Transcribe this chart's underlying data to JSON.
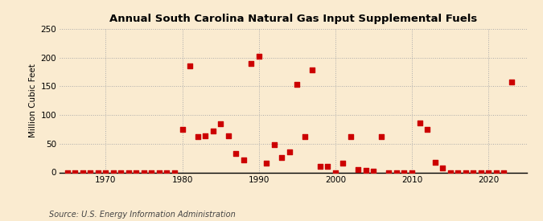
{
  "title": "Annual South Carolina Natural Gas Input Supplemental Fuels",
  "ylabel": "Million Cubic Feet",
  "source": "Source: U.S. Energy Information Administration",
  "background_color": "#faebd0",
  "plot_background_color": "#faebd0",
  "marker_color": "#cc0000",
  "marker_size": 16,
  "xlim": [
    1964,
    2025
  ],
  "ylim": [
    0,
    250
  ],
  "xticks": [
    1970,
    1980,
    1990,
    2000,
    2010,
    2020
  ],
  "yticks": [
    0,
    50,
    100,
    150,
    200,
    250
  ],
  "years": [
    1965,
    1966,
    1967,
    1968,
    1969,
    1970,
    1971,
    1972,
    1973,
    1974,
    1975,
    1976,
    1977,
    1978,
    1979,
    1980,
    1981,
    1982,
    1983,
    1984,
    1985,
    1986,
    1987,
    1988,
    1989,
    1990,
    1991,
    1992,
    1993,
    1994,
    1995,
    1996,
    1997,
    1998,
    1999,
    2000,
    2001,
    2002,
    2003,
    2004,
    2005,
    2006,
    2007,
    2008,
    2009,
    2010,
    2011,
    2012,
    2013,
    2014,
    2015,
    2016,
    2017,
    2018,
    2019,
    2020,
    2021,
    2022,
    2023
  ],
  "values": [
    0,
    0,
    0,
    0,
    0,
    0,
    0,
    0,
    0,
    0,
    0,
    0,
    0,
    0,
    0,
    75,
    185,
    62,
    63,
    72,
    85,
    63,
    33,
    22,
    190,
    202,
    16,
    48,
    26,
    35,
    153,
    62,
    178,
    11,
    10,
    0,
    16,
    62,
    5,
    3,
    2,
    62,
    0,
    0,
    0,
    0,
    86,
    75,
    18,
    8,
    0,
    0,
    0,
    0,
    0,
    0,
    0,
    0,
    158
  ]
}
